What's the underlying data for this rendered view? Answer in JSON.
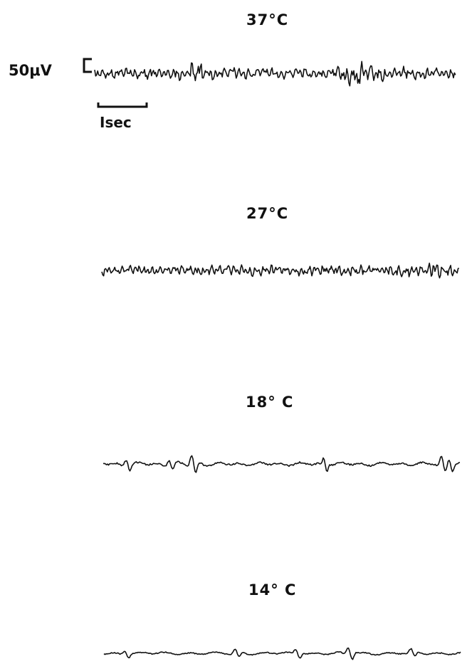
{
  "figure": {
    "scale_bar": {
      "amplitude_label": "50μV",
      "time_label": "Isec"
    },
    "traces": [
      {
        "temperature": "37°C"
      },
      {
        "temperature": "27°C"
      },
      {
        "temperature": "18° C"
      },
      {
        "temperature": "14° C"
      }
    ]
  },
  "colors": {
    "ink": "#111111",
    "background": "#ffffff"
  }
}
